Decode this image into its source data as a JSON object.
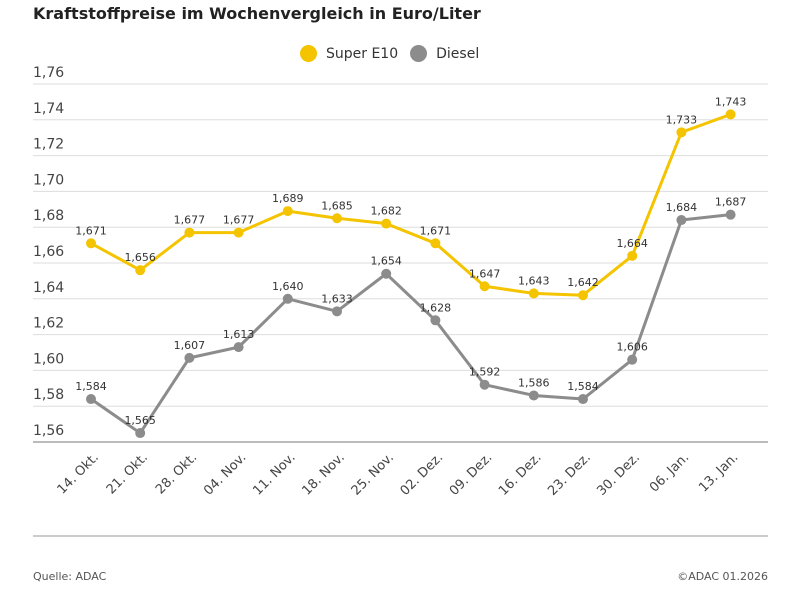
{
  "chart_data": {
    "type": "line",
    "title": "Kraftstoffpreise im Wochenvergleich in Euro/Liter",
    "categories": [
      "14. Okt.",
      "21. Okt.",
      "28. Okt.",
      "04. Nov.",
      "11. Nov.",
      "18. Nov.",
      "25. Nov.",
      "02. Dez.",
      "09. Dez.",
      "16. Dez.",
      "23. Dez.",
      "30. Dez.",
      "06. Jan.",
      "13. Jan."
    ],
    "series": [
      {
        "name": "Super E10",
        "color": "#f5c400",
        "values": [
          1.671,
          1.656,
          1.677,
          1.677,
          1.689,
          1.685,
          1.682,
          1.671,
          1.647,
          1.643,
          1.642,
          1.664,
          1.733,
          1.743
        ],
        "labels": [
          "1,671",
          "1,656",
          "1,677",
          "1,677",
          "1,689",
          "1,685",
          "1,682",
          "1,671",
          "1,647",
          "1,643",
          "1,642",
          "1,664",
          "1,733",
          "1,743"
        ]
      },
      {
        "name": "Diesel",
        "color": "#8c8c8c",
        "values": [
          1.584,
          1.565,
          1.607,
          1.613,
          1.64,
          1.633,
          1.654,
          1.628,
          1.592,
          1.586,
          1.584,
          1.606,
          1.684,
          1.687
        ],
        "labels": [
          "1,584",
          "1,565",
          "1,607",
          "1,613",
          "1,640",
          "1,633",
          "1,654",
          "1,628",
          "1,592",
          "1,586",
          "1,584",
          "1,606",
          "1,684",
          "1,687"
        ]
      }
    ],
    "yticks": [
      1.56,
      1.58,
      1.6,
      1.62,
      1.64,
      1.66,
      1.68,
      1.7,
      1.72,
      1.74,
      1.76
    ],
    "ytick_labels": [
      "1,56",
      "1,58",
      "1,60",
      "1,62",
      "1,64",
      "1,66",
      "1,68",
      "1,70",
      "1,72",
      "1,74",
      "1,76"
    ],
    "ylim": [
      1.56,
      1.76
    ],
    "grid": true,
    "legend": "top-center"
  },
  "footer": {
    "source": "Quelle: ADAC",
    "copyright": "©ADAC 01.2026"
  }
}
